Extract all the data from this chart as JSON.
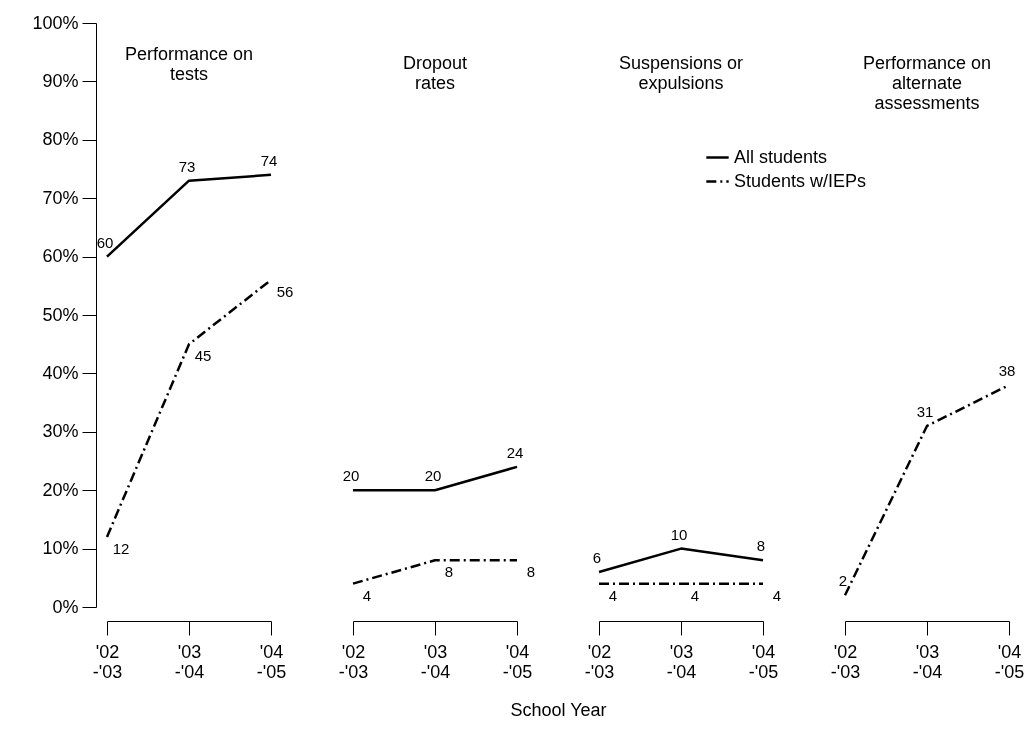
{
  "chart_data": [
    {
      "type": "line",
      "title": "Performance on\ntests",
      "legend": "top right",
      "categories": [
        "'02 -'03",
        "'03 -'04",
        "'04 -'05"
      ],
      "ylim": [
        0,
        100
      ],
      "yticks": [
        {
          "value": 0,
          "label": "0%"
        },
        {
          "value": 10,
          "label": "10%"
        },
        {
          "value": 20,
          "label": "20%"
        },
        {
          "value": 30,
          "label": "30%"
        },
        {
          "value": 40,
          "label": "40%"
        },
        {
          "value": 50,
          "label": "50%"
        },
        {
          "value": 60,
          "label": "60%"
        },
        {
          "value": 70,
          "label": "70%"
        },
        {
          "value": 80,
          "label": "80%"
        },
        {
          "value": 90,
          "label": "90%"
        },
        {
          "value": 100,
          "label": "100%"
        }
      ],
      "data_labels": true,
      "series": [
        {
          "name": "All students",
          "color": "#000000",
          "line_style": "solid",
          "values": [
            60,
            73,
            74
          ]
        },
        {
          "name": "Students w/IEPs",
          "color": "#000000",
          "line_style": "dashed",
          "values": [
            12,
            45,
            56
          ]
        }
      ]
    },
    {
      "type": "line",
      "title": "Dropout\nrates",
      "xlabel": "School Year",
      "categories": [
        "'02 -'03",
        "'03 -'04",
        "'04 -'05"
      ],
      "ylim": [
        0,
        100
      ],
      "tick_labels": "x",
      "data_labels": true,
      "series": [
        {
          "name": "All students",
          "color": "#000000",
          "line_style": "solid",
          "values": [
            20,
            20,
            24
          ]
        },
        {
          "name": "Students w/IEPs",
          "color": "#000000",
          "line_style": "dashed",
          "values": [
            4,
            8,
            8
          ]
        }
      ]
    },
    {
      "type": "line",
      "title": "Suspensions or\nexpulsions",
      "categories": [
        "'02 -'03",
        "'03 -'04",
        "'04 -'05"
      ],
      "ylim": [
        0,
        100
      ],
      "tick_labels": "x",
      "data_labels": true,
      "series": [
        {
          "name": "All students",
          "color": "#000000",
          "line_style": "solid",
          "values": [
            6,
            10,
            8
          ]
        },
        {
          "name": "Students w/IEPs",
          "color": "#000000",
          "line_style": "dashed",
          "values": [
            4,
            4,
            4
          ]
        }
      ]
    },
    {
      "type": "line",
      "title": "Performance on\nalternate\nassessments",
      "categories": [
        "'02 -'03",
        "'03 -'04",
        "'04 -'05"
      ],
      "ylim": [
        0,
        100
      ],
      "tick_labels": "x",
      "data_labels": true,
      "series": [
        {
          "name": "Students w/IEPs",
          "color": "#000000",
          "line_style": "dashed",
          "values": [
            2,
            31,
            38
          ]
        }
      ]
    }
  ]
}
